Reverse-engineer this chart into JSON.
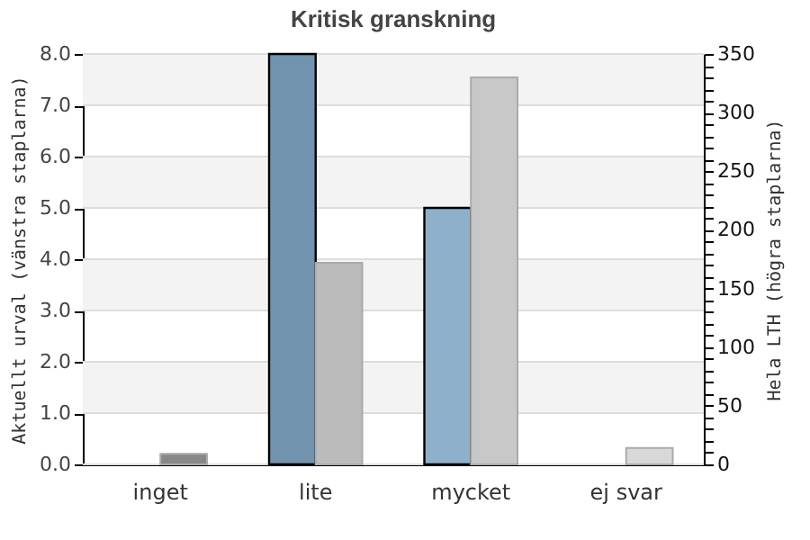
{
  "chart_data": {
    "type": "bar",
    "title": "Kritisk granskning",
    "categories": [
      "inget",
      "lite",
      "mycket",
      "ej svar"
    ],
    "series": [
      {
        "colors": [
          "#7293ad",
          "#7293ad",
          "#8fb0cb",
          "#8fb0cb"
        ],
        "values": [
          0,
          8,
          5,
          0
        ]
      },
      {
        "colors": [
          "#888888",
          "#bbbbbb",
          "#c8c8c8",
          "#d8d8d8"
        ],
        "values": [
          9,
          172,
          330,
          14
        ],
        "axis": "y2"
      }
    ],
    "ylabel": "Aktuellt urval (vänstra staplarna)",
    "y2label": "Hela LTH (högra staplarna)",
    "ylim": [
      0,
      8
    ],
    "yticks": [
      {
        "value": 0,
        "label": "0.0"
      },
      {
        "value": 1,
        "label": "1.0"
      },
      {
        "value": 2,
        "label": "2.0"
      },
      {
        "value": 3,
        "label": "3.0"
      },
      {
        "value": 4,
        "label": "4.0"
      },
      {
        "value": 5,
        "label": "5.0"
      },
      {
        "value": 6,
        "label": "6.0"
      },
      {
        "value": 7,
        "label": "7.0"
      },
      {
        "value": 8,
        "label": "8.0"
      }
    ],
    "y2lim": [
      0,
      350
    ],
    "y2ticks": [
      0,
      {
        "value": 10,
        "label": null
      },
      {
        "value": 20,
        "label": null
      },
      {
        "value": 30,
        "label": null
      },
      {
        "value": 40,
        "label": null
      },
      50,
      {
        "value": 60,
        "label": null
      },
      {
        "value": 70,
        "label": null
      },
      {
        "value": 80,
        "label": null
      },
      {
        "value": 90,
        "label": null
      },
      100,
      {
        "value": 110,
        "label": null
      },
      {
        "value": 120,
        "label": null
      },
      {
        "value": 130,
        "label": null
      },
      {
        "value": 140,
        "label": null
      },
      150,
      {
        "value": 160,
        "label": null
      },
      {
        "value": 170,
        "label": null
      },
      {
        "value": 180,
        "label": null
      },
      {
        "value": 190,
        "label": null
      },
      200,
      {
        "value": 210,
        "label": null
      },
      {
        "value": 220,
        "label": null
      },
      {
        "value": 230,
        "label": null
      },
      {
        "value": 240,
        "label": null
      },
      250,
      {
        "value": 260,
        "label": null
      },
      {
        "value": 270,
        "label": null
      },
      {
        "value": 280,
        "label": null
      },
      {
        "value": 290,
        "label": null
      },
      300,
      {
        "value": 310,
        "label": null
      },
      {
        "value": 320,
        "label": null
      },
      {
        "value": 330,
        "label": null
      },
      {
        "value": 340,
        "label": null
      },
      350
    ],
    "bands": [
      {
        "axis": "y",
        "from": 1,
        "to": 2,
        "color": "#f3f3f3"
      },
      {
        "axis": "y",
        "from": 3,
        "to": 4,
        "color": "#f3f3f3"
      },
      {
        "axis": "y",
        "from": 5,
        "to": 6,
        "color": "#f3f3f3"
      },
      {
        "axis": "y",
        "from": 7,
        "to": 8,
        "color": "#f3f3f3"
      }
    ],
    "grid": "y"
  }
}
